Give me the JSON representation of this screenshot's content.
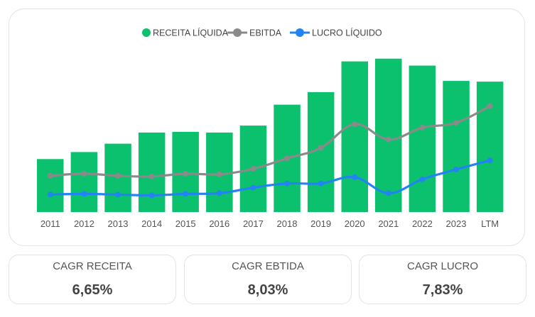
{
  "chart_data": {
    "type": "bar",
    "categories": [
      "2011",
      "2012",
      "2013",
      "2014",
      "2015",
      "2016",
      "2017",
      "2018",
      "2019",
      "2020",
      "2021",
      "2022",
      "2023",
      "LTM"
    ],
    "series": [
      {
        "name": "RECEITA LÍQUIDA",
        "kind": "bar",
        "color": "#0BC16E",
        "values": [
          38,
          43,
          49,
          57,
          57.5,
          57,
          62,
          77,
          86,
          108,
          110,
          105,
          94,
          93.5
        ]
      },
      {
        "name": "EBITDA",
        "kind": "line",
        "color": "#8A8A8A",
        "values": [
          26,
          27.5,
          26,
          25.5,
          27.5,
          27,
          31,
          38.5,
          46,
          63,
          52,
          60.5,
          64,
          76
        ]
      },
      {
        "name": "LUCRO LÍQUIDO",
        "kind": "line",
        "color": "#2383F2",
        "values": [
          12.5,
          13,
          12.5,
          12,
          13,
          13.5,
          17.5,
          20.5,
          20.5,
          25,
          13.5,
          23.5,
          30.5,
          37
        ]
      }
    ],
    "ylim": [
      0,
      120
    ],
    "grid": false,
    "legend": "top-center",
    "title": "",
    "xlabel": "",
    "ylabel": ""
  },
  "kpis": [
    {
      "title": "CAGR RECEITA",
      "value": "6,65%"
    },
    {
      "title": "CAGR EBTIDA",
      "value": "8,03%"
    },
    {
      "title": "CAGR LUCRO",
      "value": "7,83%"
    }
  ]
}
